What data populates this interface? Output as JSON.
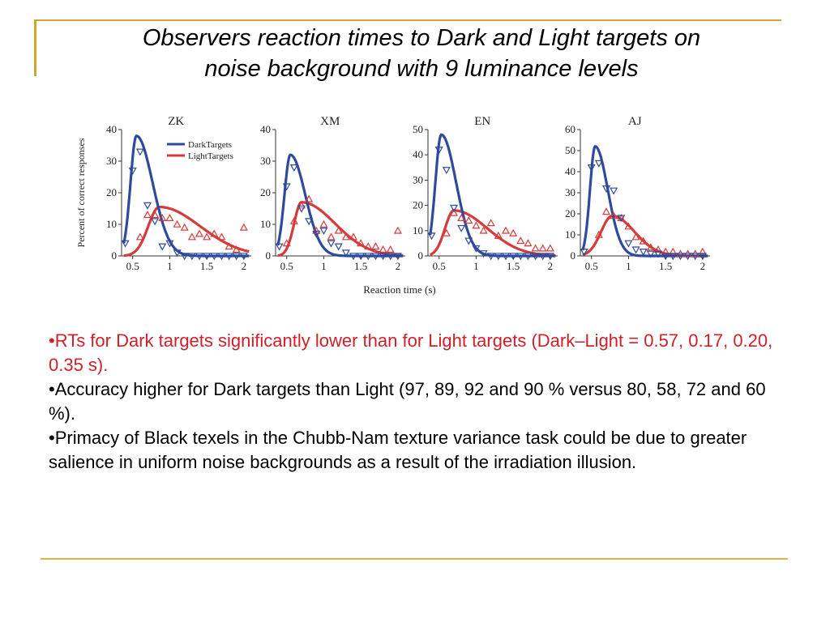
{
  "title": {
    "line1": "Observers reaction times to Dark and Light targets on",
    "line2": "noise background with 9 luminance levels"
  },
  "colors": {
    "dark": "#2e4a9c",
    "light": "#d63a3a",
    "accent_rule": "#cfa632",
    "bullet_highlight": "#d0202a"
  },
  "chart_data": {
    "type": "line",
    "ylabel": "Percent of correct responses",
    "xlabel": "Reaction time (s)",
    "legend": {
      "placement": "top-right of first panel",
      "entries": [
        "DarkTargets",
        "LightTargets"
      ]
    },
    "x_ticks": [
      "0.5",
      "1",
      "1.5",
      "2"
    ],
    "x_tick_values": [
      0.5,
      1,
      1.5,
      2
    ],
    "xlim": [
      0.35,
      2.1
    ],
    "panels": [
      {
        "name": "ZK",
        "ylim": [
          0,
          40
        ],
        "y_ticks": [
          0,
          10,
          20,
          30,
          40
        ],
        "dark_curve": {
          "peak_x": 0.55,
          "peak_y": 38,
          "rise": 0.08,
          "fall": 0.22
        },
        "light_curve": {
          "peak_x": 0.86,
          "peak_y": 15.5,
          "rise": 0.15,
          "fall": 0.55
        },
        "dark_points": [
          [
            0.4,
            4
          ],
          [
            0.5,
            27
          ],
          [
            0.6,
            33
          ],
          [
            0.7,
            16
          ],
          [
            0.8,
            11
          ],
          [
            0.9,
            3
          ],
          [
            1.0,
            4
          ],
          [
            1.1,
            1
          ],
          [
            1.2,
            0
          ],
          [
            1.3,
            0
          ],
          [
            1.4,
            0
          ],
          [
            1.5,
            0
          ],
          [
            1.6,
            0
          ],
          [
            1.7,
            0
          ],
          [
            1.8,
            0
          ],
          [
            1.9,
            0
          ],
          [
            2.0,
            0
          ]
        ],
        "light_points": [
          [
            0.6,
            6
          ],
          [
            0.7,
            13
          ],
          [
            0.8,
            13
          ],
          [
            0.9,
            12
          ],
          [
            1.0,
            12
          ],
          [
            1.1,
            10
          ],
          [
            1.2,
            9
          ],
          [
            1.3,
            6
          ],
          [
            1.4,
            7
          ],
          [
            1.5,
            6
          ],
          [
            1.6,
            7
          ],
          [
            1.7,
            6
          ],
          [
            1.8,
            3
          ],
          [
            1.9,
            2
          ],
          [
            2.0,
            9
          ]
        ]
      },
      {
        "name": "XM",
        "ylim": [
          0,
          40
        ],
        "y_ticks": [
          0,
          10,
          20,
          30,
          40
        ],
        "dark_curve": {
          "peak_x": 0.55,
          "peak_y": 32,
          "rise": 0.08,
          "fall": 0.2
        },
        "light_curve": {
          "peak_x": 0.7,
          "peak_y": 17,
          "rise": 0.1,
          "fall": 0.45
        },
        "dark_points": [
          [
            0.4,
            3
          ],
          [
            0.5,
            22
          ],
          [
            0.6,
            28
          ],
          [
            0.7,
            15
          ],
          [
            0.8,
            11
          ],
          [
            0.9,
            7
          ],
          [
            1.0,
            8
          ],
          [
            1.1,
            4
          ],
          [
            1.2,
            3
          ],
          [
            1.3,
            1
          ],
          [
            1.4,
            0
          ],
          [
            1.5,
            0
          ],
          [
            1.6,
            0
          ],
          [
            1.7,
            0
          ],
          [
            1.8,
            0
          ],
          [
            1.9,
            0
          ],
          [
            2.0,
            0
          ]
        ],
        "light_points": [
          [
            0.5,
            4
          ],
          [
            0.6,
            11
          ],
          [
            0.7,
            16
          ],
          [
            0.8,
            18
          ],
          [
            0.9,
            8
          ],
          [
            1.0,
            10
          ],
          [
            1.1,
            6
          ],
          [
            1.2,
            8
          ],
          [
            1.3,
            6
          ],
          [
            1.4,
            6
          ],
          [
            1.5,
            4
          ],
          [
            1.6,
            3
          ],
          [
            1.7,
            3
          ],
          [
            1.8,
            2
          ],
          [
            1.9,
            2
          ],
          [
            2.0,
            8
          ]
        ]
      },
      {
        "name": "EN",
        "ylim": [
          0,
          50
        ],
        "y_ticks": [
          0,
          10,
          20,
          30,
          40,
          50
        ],
        "dark_curve": {
          "peak_x": 0.53,
          "peak_y": 48,
          "rise": 0.08,
          "fall": 0.2
        },
        "light_curve": {
          "peak_x": 0.7,
          "peak_y": 18,
          "rise": 0.12,
          "fall": 0.45
        },
        "dark_points": [
          [
            0.4,
            8
          ],
          [
            0.5,
            42
          ],
          [
            0.6,
            34
          ],
          [
            0.7,
            19
          ],
          [
            0.8,
            11
          ],
          [
            0.9,
            6
          ],
          [
            1.0,
            3
          ],
          [
            1.1,
            1
          ],
          [
            1.2,
            0
          ],
          [
            1.3,
            0
          ],
          [
            1.4,
            0
          ],
          [
            1.5,
            0
          ],
          [
            1.6,
            0
          ],
          [
            1.7,
            0
          ],
          [
            1.8,
            0
          ],
          [
            1.9,
            0
          ],
          [
            2.0,
            0
          ]
        ],
        "light_points": [
          [
            0.6,
            9
          ],
          [
            0.7,
            17
          ],
          [
            0.8,
            15
          ],
          [
            0.9,
            14
          ],
          [
            1.0,
            12
          ],
          [
            1.1,
            10
          ],
          [
            1.2,
            13
          ],
          [
            1.3,
            8
          ],
          [
            1.4,
            10
          ],
          [
            1.5,
            9
          ],
          [
            1.6,
            6
          ],
          [
            1.7,
            5
          ],
          [
            1.8,
            3
          ],
          [
            1.9,
            3
          ],
          [
            2.0,
            3
          ]
        ]
      },
      {
        "name": "AJ",
        "ylim": [
          0,
          60
        ],
        "y_ticks": [
          0,
          10,
          20,
          30,
          40,
          50,
          60
        ],
        "dark_curve": {
          "peak_x": 0.55,
          "peak_y": 52,
          "rise": 0.07,
          "fall": 0.17
        },
        "light_curve": {
          "peak_x": 0.78,
          "peak_y": 19,
          "rise": 0.15,
          "fall": 0.3
        },
        "dark_points": [
          [
            0.4,
            2
          ],
          [
            0.5,
            42
          ],
          [
            0.6,
            44
          ],
          [
            0.7,
            32
          ],
          [
            0.8,
            31
          ],
          [
            0.9,
            18
          ],
          [
            1.0,
            6
          ],
          [
            1.1,
            3
          ],
          [
            1.2,
            2
          ],
          [
            1.3,
            1
          ],
          [
            1.4,
            1
          ],
          [
            1.5,
            0
          ],
          [
            1.6,
            0
          ],
          [
            1.7,
            0
          ],
          [
            1.8,
            0
          ],
          [
            1.9,
            0
          ],
          [
            2.0,
            0
          ]
        ],
        "light_points": [
          [
            0.6,
            10
          ],
          [
            0.7,
            21
          ],
          [
            0.8,
            19
          ],
          [
            0.9,
            18
          ],
          [
            1.0,
            14
          ],
          [
            1.1,
            9
          ],
          [
            1.2,
            7
          ],
          [
            1.3,
            4
          ],
          [
            1.4,
            3
          ],
          [
            1.5,
            2
          ],
          [
            1.6,
            2
          ],
          [
            1.7,
            1
          ],
          [
            1.8,
            1
          ],
          [
            1.9,
            1
          ],
          [
            2.0,
            2
          ]
        ]
      }
    ]
  },
  "bullets": [
    {
      "text": "•RTs for Dark targets significantly lower than for Light targets (Dark–Light = 0.57, 0.17, 0.20, 0.35 s).",
      "highlight": true
    },
    {
      "text": "•Accuracy higher for Dark targets than Light (97, 89, 92 and 90 % versus 80, 58, 72 and 60 %).",
      "highlight": false
    },
    {
      "text": "•Primacy of Black texels in the Chubb-Nam texture variance task could be due to greater salience in uniform noise backgrounds as a result of the irradiation illusion.",
      "highlight": false
    }
  ]
}
